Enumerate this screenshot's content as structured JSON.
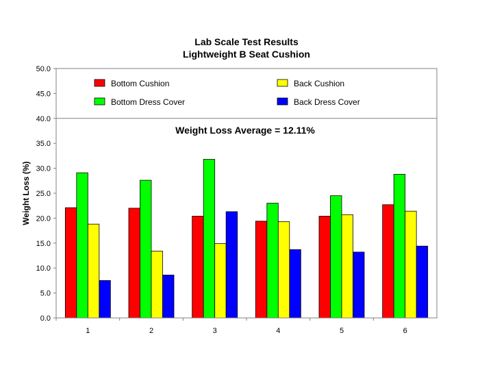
{
  "chart_data": {
    "type": "bar",
    "title": "Lab Scale Test Results",
    "subtitle": "Lightweight B Seat Cushion",
    "xlabel": "",
    "ylabel": "Weight Loss (%)",
    "ylim": [
      0,
      50
    ],
    "yticks": [
      "0.0",
      "5.0",
      "10.0",
      "15.0",
      "20.0",
      "25.0",
      "30.0",
      "35.0",
      "40.0",
      "45.0",
      "50.0"
    ],
    "categories": [
      "1",
      "2",
      "3",
      "4",
      "5",
      "6"
    ],
    "series": [
      {
        "name": "Bottom Cushion",
        "color": "#ff0000",
        "values": [
          22.1,
          22.0,
          20.4,
          19.4,
          20.4,
          22.7
        ]
      },
      {
        "name": "Bottom Dress Cover",
        "color": "#00ff00",
        "values": [
          29.1,
          27.6,
          31.8,
          23.0,
          24.5,
          28.8
        ]
      },
      {
        "name": "Back Cushion",
        "color": "#ffff00",
        "values": [
          18.8,
          13.4,
          14.9,
          19.3,
          20.7,
          21.4
        ]
      },
      {
        "name": "Back Dress Cover",
        "color": "#0000ff",
        "values": [
          7.5,
          8.6,
          21.3,
          13.7,
          13.2,
          14.4
        ]
      }
    ],
    "annotation": "Weight Loss Average = 12.11%",
    "grid": "horizontal lines at 0 and 40",
    "legend_position": "top, inside plot"
  }
}
